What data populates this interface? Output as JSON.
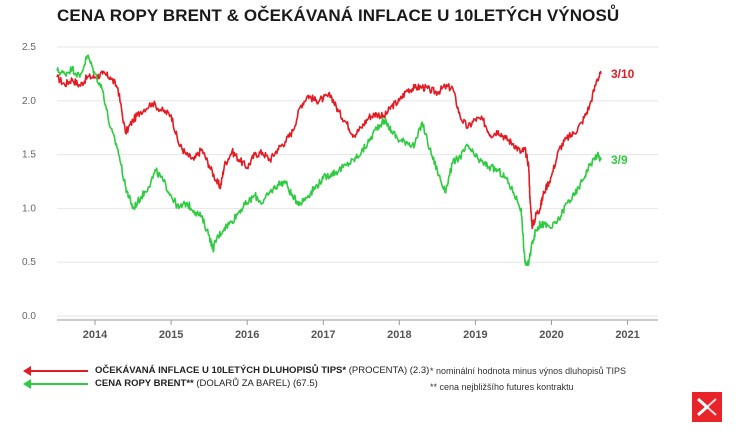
{
  "title": "CENA ROPY BRENT & OČEKÁVANÁ INFLACE U 10LETÝCH VÝNOSŮ",
  "legend": [
    {
      "bold": "OČEKÁVANÁ INFLACE U 10LETÝCH DLUHOPISŮ TIPS*",
      "rest": " (PROCENTA) (2.3)",
      "color": "#e31b23"
    },
    {
      "bold": "CENA ROPY BRENT**",
      "rest": " (DOLARŮ ZA BAREL) (67.5)",
      "color": "#2ecc40"
    }
  ],
  "notes": [
    "* nominální hodnota minus výnos dluhopisů TIPS",
    "** cena nejbližšího futures kontraktu"
  ],
  "logo": "xstation-logo-icon",
  "chart_data": {
    "type": "line",
    "title": "CENA ROPY BRENT & OČEKÁVANÁ INFLACE U 10LETÝCH VÝNOSŮ",
    "xlabel": "",
    "ylabel": "",
    "x_ticks": [
      "2014",
      "2015",
      "2016",
      "2017",
      "2018",
      "2019",
      "2020",
      "2021"
    ],
    "y_ticks": [
      "0.0",
      "0.5",
      "1.0",
      "1.5",
      "2.0",
      "2.5"
    ],
    "xlim": [
      2013.5,
      2021.4
    ],
    "ylim": [
      0,
      2.5
    ],
    "grid": true,
    "series": [
      {
        "name": "OČEKÁVANÁ INFLACE U 10LETÝCH DLUHOPISŮ TIPS",
        "color": "#e31b23",
        "end_label": "3/10",
        "x": [
          2013.5,
          2013.6,
          2013.7,
          2013.8,
          2013.9,
          2014.0,
          2014.1,
          2014.2,
          2014.3,
          2014.4,
          2014.5,
          2014.6,
          2014.75,
          2014.9,
          2015.0,
          2015.1,
          2015.2,
          2015.3,
          2015.4,
          2015.5,
          2015.6,
          2015.65,
          2015.7,
          2015.8,
          2015.9,
          2016.0,
          2016.1,
          2016.2,
          2016.3,
          2016.4,
          2016.5,
          2016.6,
          2016.7,
          2016.8,
          2016.9,
          2017.0,
          2017.1,
          2017.2,
          2017.3,
          2017.4,
          2017.5,
          2017.6,
          2017.7,
          2017.8,
          2017.9,
          2018.0,
          2018.1,
          2018.2,
          2018.3,
          2018.4,
          2018.5,
          2018.6,
          2018.7,
          2018.8,
          2018.9,
          2019.0,
          2019.1,
          2019.2,
          2019.3,
          2019.4,
          2019.5,
          2019.6,
          2019.65,
          2019.7,
          2019.72,
          2019.75,
          2019.8,
          2019.85,
          2019.9,
          2020.0,
          2020.1,
          2020.2,
          2020.3,
          2020.4,
          2020.5,
          2020.6,
          2020.65
        ],
        "values": [
          2.22,
          2.15,
          2.2,
          2.14,
          2.22,
          2.22,
          2.25,
          2.22,
          2.12,
          1.7,
          1.82,
          1.9,
          1.98,
          1.9,
          1.87,
          1.6,
          1.5,
          1.45,
          1.55,
          1.4,
          1.25,
          1.2,
          1.4,
          1.53,
          1.45,
          1.38,
          1.5,
          1.52,
          1.45,
          1.55,
          1.62,
          1.72,
          1.95,
          2.05,
          2.0,
          2.02,
          2.05,
          1.9,
          1.8,
          1.68,
          1.75,
          1.85,
          1.88,
          1.85,
          1.95,
          2.0,
          2.1,
          2.12,
          2.13,
          2.1,
          2.08,
          2.13,
          2.12,
          1.85,
          1.75,
          1.83,
          1.82,
          1.68,
          1.72,
          1.65,
          1.6,
          1.52,
          1.55,
          1.4,
          1.05,
          0.82,
          0.95,
          1.0,
          1.15,
          1.3,
          1.55,
          1.65,
          1.7,
          1.8,
          1.95,
          2.2,
          2.25
        ]
      },
      {
        "name": "CENA ROPY BRENT",
        "color": "#2ecc40",
        "end_label": "3/9",
        "x": [
          2013.5,
          2013.6,
          2013.7,
          2013.8,
          2013.9,
          2014.0,
          2014.1,
          2014.2,
          2014.3,
          2014.4,
          2014.45,
          2014.5,
          2014.6,
          2014.7,
          2014.8,
          2014.9,
          2015.0,
          2015.1,
          2015.2,
          2015.3,
          2015.4,
          2015.5,
          2015.55,
          2015.6,
          2015.7,
          2015.8,
          2015.9,
          2016.0,
          2016.1,
          2016.2,
          2016.3,
          2016.4,
          2016.5,
          2016.6,
          2016.7,
          2016.8,
          2016.9,
          2017.0,
          2017.1,
          2017.2,
          2017.3,
          2017.4,
          2017.5,
          2017.6,
          2017.7,
          2017.8,
          2017.9,
          2018.0,
          2018.1,
          2018.2,
          2018.3,
          2018.4,
          2018.5,
          2018.6,
          2018.7,
          2018.8,
          2018.9,
          2019.0,
          2019.1,
          2019.2,
          2019.3,
          2019.4,
          2019.5,
          2019.6,
          2019.65,
          2019.7,
          2019.75,
          2019.8,
          2019.85,
          2019.9,
          2020.0,
          2020.1,
          2020.2,
          2020.3,
          2020.4,
          2020.5,
          2020.6,
          2020.65
        ],
        "values": [
          2.28,
          2.25,
          2.3,
          2.22,
          2.42,
          2.25,
          2.1,
          1.75,
          1.55,
          1.2,
          1.1,
          1.0,
          1.1,
          1.2,
          1.35,
          1.25,
          1.12,
          1.0,
          1.05,
          0.98,
          0.92,
          0.75,
          0.62,
          0.72,
          0.82,
          0.88,
          0.98,
          1.05,
          1.12,
          1.05,
          1.15,
          1.22,
          1.25,
          1.1,
          1.05,
          1.12,
          1.2,
          1.28,
          1.32,
          1.35,
          1.4,
          1.45,
          1.52,
          1.62,
          1.75,
          1.82,
          1.72,
          1.63,
          1.62,
          1.58,
          1.8,
          1.55,
          1.35,
          1.15,
          1.42,
          1.48,
          1.58,
          1.48,
          1.42,
          1.38,
          1.35,
          1.28,
          1.15,
          1.0,
          0.5,
          0.48,
          0.7,
          0.8,
          0.85,
          0.85,
          0.82,
          0.9,
          1.05,
          1.12,
          1.25,
          1.4,
          1.5,
          1.45
        ]
      }
    ]
  }
}
